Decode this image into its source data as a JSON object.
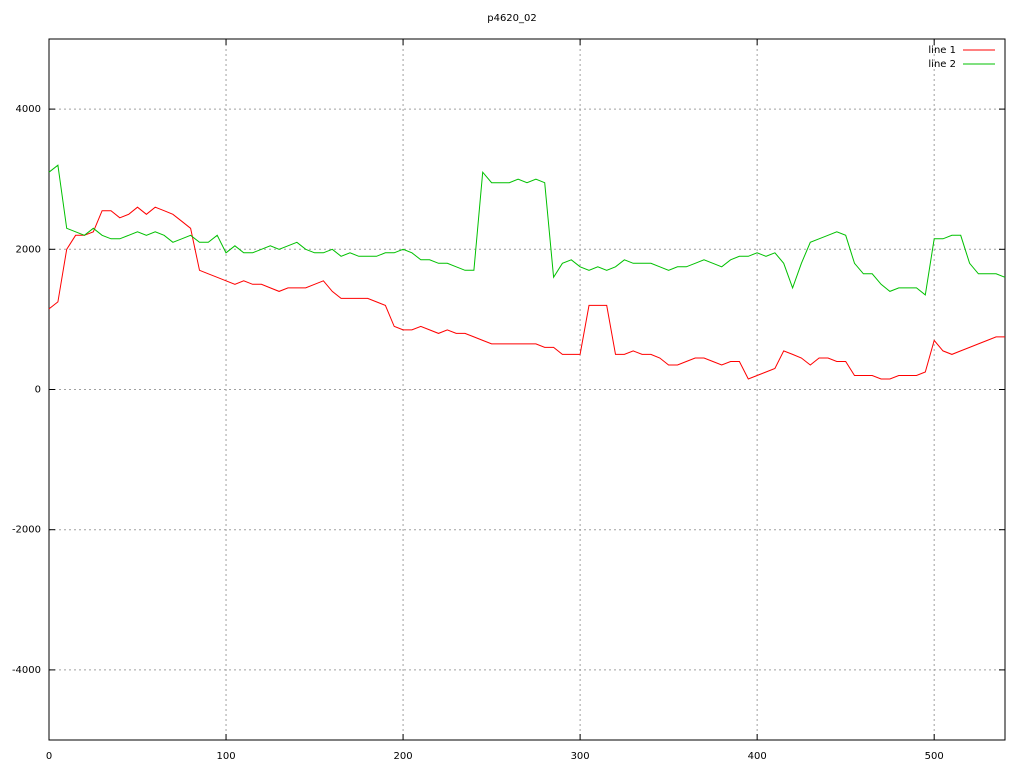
{
  "chart_data": {
    "type": "line",
    "title": "p4620_02",
    "x": [
      0,
      5,
      10,
      15,
      20,
      25,
      30,
      35,
      40,
      45,
      50,
      55,
      60,
      65,
      70,
      75,
      80,
      85,
      90,
      95,
      100,
      105,
      110,
      115,
      120,
      125,
      130,
      135,
      140,
      145,
      150,
      155,
      160,
      165,
      170,
      175,
      180,
      185,
      190,
      195,
      200,
      205,
      210,
      215,
      220,
      225,
      230,
      235,
      240,
      245,
      250,
      255,
      260,
      265,
      270,
      275,
      280,
      285,
      290,
      295,
      300,
      305,
      310,
      315,
      320,
      325,
      330,
      335,
      340,
      345,
      350,
      355,
      360,
      365,
      370,
      375,
      380,
      385,
      390,
      395,
      400,
      405,
      410,
      415,
      420,
      425,
      430,
      435,
      440,
      445,
      450,
      455,
      460,
      465,
      470,
      475,
      480,
      485,
      490,
      495,
      500,
      505,
      510,
      515,
      520,
      525,
      530,
      535,
      540
    ],
    "series": [
      {
        "name": "line 1",
        "color": "#ff0000",
        "values": [
          1150,
          1250,
          2000,
          2200,
          2200,
          2250,
          2550,
          2550,
          2450,
          2500,
          2600,
          2500,
          2600,
          2550,
          2500,
          2400,
          2300,
          1700,
          1650,
          1600,
          1550,
          1500,
          1550,
          1500,
          1500,
          1450,
          1400,
          1450,
          1450,
          1450,
          1500,
          1550,
          1400,
          1300,
          1300,
          1300,
          1300,
          1250,
          1200,
          900,
          850,
          850,
          900,
          850,
          800,
          850,
          800,
          800,
          750,
          700,
          650,
          650,
          650,
          650,
          650,
          650,
          600,
          600,
          500,
          500,
          500,
          1200,
          1200,
          1200,
          500,
          500,
          550,
          500,
          500,
          450,
          350,
          350,
          400,
          450,
          450,
          400,
          350,
          400,
          400,
          150,
          200,
          250,
          300,
          550,
          500,
          450,
          350,
          450,
          450,
          400,
          400,
          200,
          200,
          200,
          150,
          150,
          200,
          200,
          200,
          250,
          700,
          550,
          500,
          550,
          600,
          650,
          700,
          750,
          750
        ]
      },
      {
        "name": "line 2",
        "color": "#00c000",
        "values": [
          3100,
          3200,
          2300,
          2250,
          2200,
          2300,
          2200,
          2150,
          2150,
          2200,
          2250,
          2200,
          2250,
          2200,
          2100,
          2150,
          2200,
          2100,
          2100,
          2200,
          1950,
          2050,
          1950,
          1950,
          2000,
          2050,
          2000,
          2050,
          2100,
          2000,
          1950,
          1950,
          2000,
          1900,
          1950,
          1900,
          1900,
          1900,
          1950,
          1950,
          2000,
          1950,
          1850,
          1850,
          1800,
          1800,
          1750,
          1700,
          1700,
          3100,
          2950,
          2950,
          2950,
          3000,
          2950,
          3000,
          2950,
          1600,
          1800,
          1850,
          1750,
          1700,
          1750,
          1700,
          1750,
          1850,
          1800,
          1800,
          1800,
          1750,
          1700,
          1750,
          1750,
          1800,
          1850,
          1800,
          1750,
          1850,
          1900,
          1900,
          1950,
          1900,
          1950,
          1800,
          1450,
          1800,
          2100,
          2150,
          2200,
          2250,
          2200,
          1800,
          1650,
          1650,
          1500,
          1400,
          1450,
          1450,
          1450,
          1350,
          2150,
          2150,
          2200,
          2200,
          1800,
          1650,
          1650,
          1650,
          1600
        ]
      }
    ],
    "xlim": [
      0,
      540
    ],
    "xticks": [
      0,
      100,
      200,
      300,
      400,
      500
    ],
    "ylim": [
      -5000,
      5000
    ],
    "yticks": [
      -4000,
      -2000,
      0,
      2000,
      4000
    ],
    "grid": true,
    "legend": "top-right"
  }
}
